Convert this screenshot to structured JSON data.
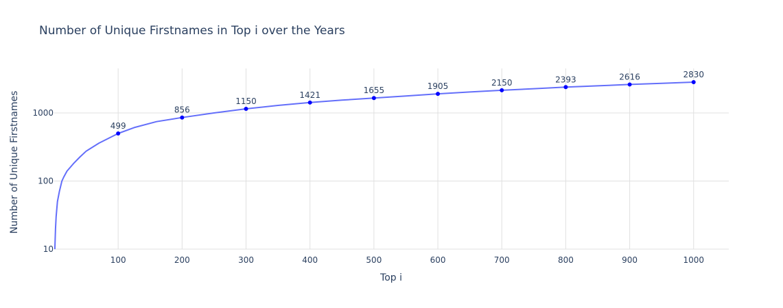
{
  "chart_data": {
    "type": "line",
    "title": "Number of Unique Firstnames in Top i over the Years",
    "xlabel": "Top i",
    "ylabel": "Number of Unique Firstnames",
    "xlim": [
      0,
      1055
    ],
    "ylim": [
      10,
      4500
    ],
    "y_scale": "log",
    "grid": true,
    "legend": "none",
    "x_ticks": [
      100,
      200,
      300,
      400,
      500,
      600,
      700,
      800,
      900,
      1000
    ],
    "y_ticks": [
      10,
      100,
      1000
    ],
    "series": [
      {
        "color": "#636efa",
        "x": [
          1,
          2,
          3,
          5,
          8,
          12,
          15,
          20,
          30,
          40,
          50,
          70,
          100,
          125,
          160,
          200,
          250,
          300,
          350,
          400,
          450,
          500,
          550,
          600,
          650,
          700,
          750,
          800,
          850,
          900,
          950,
          1000
        ],
        "y": [
          10,
          20,
          30,
          50,
          70,
          100,
          115,
          140,
          180,
          225,
          275,
          360,
          499,
          610,
          745,
          856,
          1000,
          1150,
          1290,
          1421,
          1540,
          1655,
          1775,
          1905,
          2030,
          2150,
          2270,
          2393,
          2500,
          2616,
          2720,
          2830
        ]
      }
    ],
    "markers": {
      "color": "#0000ff",
      "x": [
        100,
        200,
        300,
        400,
        500,
        600,
        700,
        800,
        900,
        1000
      ],
      "labels": [
        "499",
        "856",
        "1150",
        "1421",
        "1655",
        "1905",
        "2150",
        "2393",
        "2616",
        "2830"
      ]
    }
  }
}
